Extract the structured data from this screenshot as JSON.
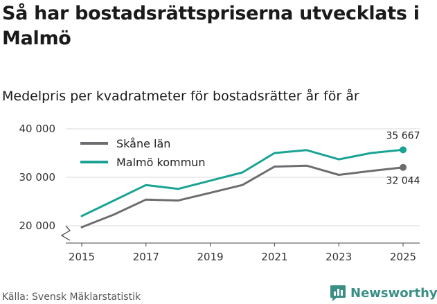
{
  "title": "Så har bostadsrättspriserna utvecklats i Malmö",
  "subtitle": "Medelpris per kvadratmeter för bostadsrätter år för år",
  "source": "Källa: Svensk Mäklarstatistik",
  "brand": {
    "name": "Newsworthy",
    "icon": "newsworthy-logo-icon",
    "color": "#3a8f84"
  },
  "chart_data": {
    "type": "line",
    "title": "Så har bostadsrättspriserna utvecklats i Malmö",
    "subtitle": "Medelpris per kvadratmeter för bostadsrätter år för år",
    "xlabel": "",
    "ylabel": "",
    "x": [
      2015,
      2016,
      2017,
      2018,
      2019,
      2020,
      2021,
      2022,
      2023,
      2024,
      2025
    ],
    "x_ticks": [
      "2015",
      "2017",
      "2019",
      "2021",
      "2023",
      "2025"
    ],
    "y_ticks": [
      "20 000",
      "30 000",
      "40 000"
    ],
    "ylim": [
      17400,
      40000
    ],
    "legend_position": "top-left",
    "series": [
      {
        "name": "Skåne län",
        "color": "#6d6d71",
        "values": [
          19700,
          22300,
          25400,
          25200,
          26800,
          28400,
          32200,
          32400,
          30500,
          31300,
          32044
        ],
        "end_label": "32 044"
      },
      {
        "name": "Malmö kommun",
        "color": "#1aa394",
        "values": [
          22000,
          25200,
          28400,
          27600,
          29300,
          31000,
          35000,
          35600,
          33700,
          35000,
          35667
        ],
        "end_label": "35 667"
      }
    ]
  }
}
